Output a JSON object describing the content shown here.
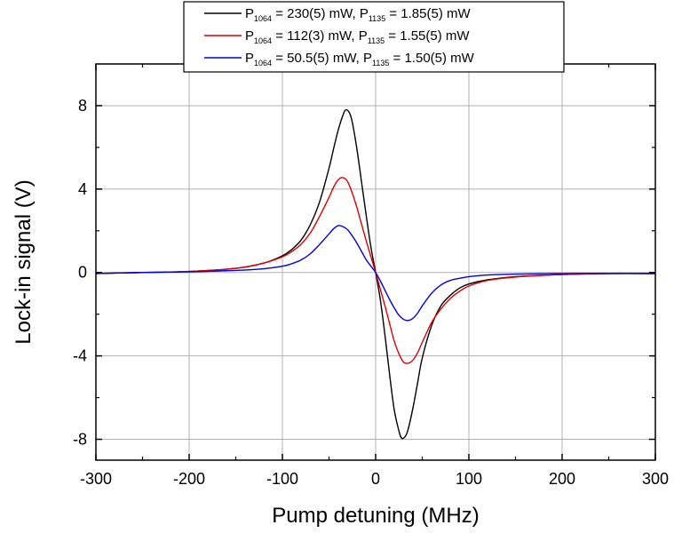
{
  "chart_data": {
    "type": "line",
    "title": "",
    "xlabel": "Pump detuning (MHz)",
    "ylabel": "Lock-in signal (V)",
    "xlim": [
      -300,
      300
    ],
    "ylim": [
      -9,
      10
    ],
    "xticks": [
      -300,
      -200,
      -100,
      0,
      100,
      200,
      300
    ],
    "xtick_labels": [
      "-300",
      "-200",
      "-100",
      "0",
      "100",
      "200",
      "300"
    ],
    "yticks": [
      -8,
      -4,
      0,
      4,
      8
    ],
    "ytick_labels": [
      "-8",
      "-4",
      "0",
      "4",
      "8"
    ],
    "grid": true,
    "legend_position": "top-center",
    "series": [
      {
        "name": "P1064 = 230(5) mW, P1135 = 1.85(5) mW",
        "legend": {
          "p1": "P",
          "s1": "1064",
          "t1": " =  230(5) mW, P",
          "s2": "1135",
          "t2": " =  1.85(5) mW"
        },
        "color": "#000000",
        "x": [
          -300,
          -250,
          -200,
          -150,
          -120,
          -100,
          -90,
          -80,
          -70,
          -60,
          -50,
          -45,
          -40,
          -35,
          -32,
          -28,
          -25,
          -20,
          -15,
          -10,
          -5,
          0,
          5,
          10,
          15,
          20,
          25,
          28,
          32,
          35,
          40,
          45,
          50,
          60,
          70,
          80,
          90,
          100,
          120,
          150,
          200,
          250,
          300
        ],
        "y": [
          -0.05,
          0.0,
          0.05,
          0.2,
          0.45,
          0.8,
          1.1,
          1.55,
          2.3,
          3.4,
          5.0,
          5.95,
          6.85,
          7.55,
          7.8,
          7.65,
          7.2,
          5.9,
          4.3,
          2.7,
          1.2,
          0.0,
          -1.3,
          -3.0,
          -4.9,
          -6.6,
          -7.6,
          -7.95,
          -7.85,
          -7.5,
          -6.5,
          -5.3,
          -4.1,
          -2.55,
          -1.6,
          -1.1,
          -0.75,
          -0.55,
          -0.35,
          -0.2,
          -0.1,
          -0.05,
          -0.05
        ]
      },
      {
        "name": "P1064 = 112(3) mW, P1135 = 1.55(5) mW",
        "legend": {
          "p1": "P",
          "s1": "1064",
          "t1": " =  112(3) mW, P",
          "s2": "1135",
          "t2": " =  1.55(5) mW"
        },
        "color": "#e00000",
        "x": [
          -300,
          -250,
          -200,
          -150,
          -120,
          -100,
          -90,
          -80,
          -70,
          -60,
          -50,
          -45,
          -40,
          -35,
          -30,
          -25,
          -20,
          -15,
          -10,
          -5,
          0,
          5,
          10,
          15,
          20,
          25,
          30,
          35,
          40,
          45,
          50,
          60,
          70,
          80,
          90,
          100,
          120,
          150,
          200,
          250,
          300
        ],
        "y": [
          -0.05,
          0.0,
          0.05,
          0.2,
          0.45,
          0.75,
          1.0,
          1.35,
          1.9,
          2.7,
          3.6,
          4.1,
          4.45,
          4.55,
          4.35,
          3.8,
          3.1,
          2.3,
          1.5,
          0.75,
          0.0,
          -0.8,
          -1.6,
          -2.45,
          -3.3,
          -3.9,
          -4.3,
          -4.35,
          -4.2,
          -3.85,
          -3.35,
          -2.4,
          -1.75,
          -1.25,
          -0.9,
          -0.65,
          -0.38,
          -0.22,
          -0.1,
          -0.05,
          -0.05
        ]
      },
      {
        "name": "P1064 = 50.5(5) mW, P1135 = 1.50(5) mW",
        "legend": {
          "p1": "P",
          "s1": "1064",
          "t1": " =  50.5(5) mW, P",
          "s2": "1135",
          "t2": " =  1.50(5) mW"
        },
        "color": "#0000e0",
        "x": [
          -300,
          -250,
          -200,
          -150,
          -120,
          -100,
          -90,
          -80,
          -70,
          -60,
          -50,
          -45,
          -40,
          -35,
          -30,
          -25,
          -20,
          -15,
          -10,
          -5,
          0,
          5,
          10,
          15,
          20,
          25,
          30,
          35,
          40,
          45,
          50,
          60,
          70,
          80,
          90,
          100,
          120,
          150,
          200,
          250,
          300
        ],
        "y": [
          -0.05,
          0.0,
          0.03,
          0.1,
          0.18,
          0.3,
          0.42,
          0.6,
          0.9,
          1.35,
          1.85,
          2.1,
          2.25,
          2.2,
          2.05,
          1.75,
          1.4,
          1.0,
          0.6,
          0.3,
          0.0,
          -0.4,
          -0.85,
          -1.3,
          -1.7,
          -2.05,
          -2.25,
          -2.3,
          -2.2,
          -1.95,
          -1.6,
          -1.0,
          -0.6,
          -0.38,
          -0.28,
          -0.2,
          -0.12,
          -0.08,
          -0.05,
          -0.05,
          -0.05
        ]
      }
    ]
  }
}
